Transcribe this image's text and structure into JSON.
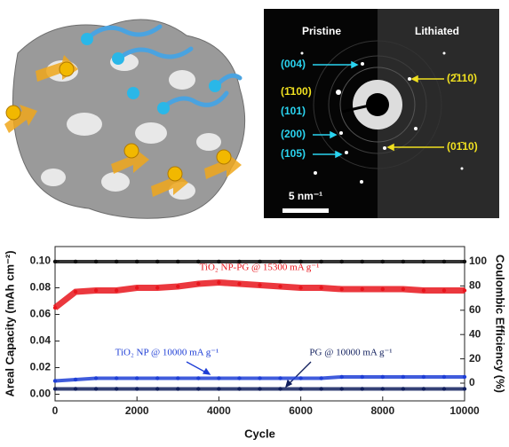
{
  "saed": {
    "pristine_label": "Pristine",
    "lithiated_label": "Lithiated",
    "left_labels": [
      "(004)",
      "(1̄100)",
      "(101)",
      "(200)",
      "(105)"
    ],
    "right_labels": [
      "(2̄110)",
      "(01̄10)"
    ],
    "scale_bar": "5 nm⁻¹"
  },
  "chart_data": {
    "type": "scatter",
    "xlabel": "Cycle",
    "ylabel": "Areal Capacity (mAh cm⁻²)",
    "y2label": "Coulombic Efficiency (%)",
    "x": [
      0,
      500,
      1000,
      1500,
      2000,
      2500,
      3000,
      3500,
      4000,
      4500,
      5000,
      5500,
      6000,
      6500,
      7000,
      7500,
      8000,
      8500,
      9000,
      9500,
      10000
    ],
    "series": [
      {
        "name": "Coulombic Efficiency",
        "color": "#111111",
        "axis": "y2",
        "values": [
          100,
          100,
          100,
          100,
          100,
          100,
          100,
          100,
          100,
          100,
          100,
          100,
          100,
          100,
          100,
          100,
          100,
          100,
          100,
          100,
          100
        ]
      },
      {
        "name": "TiO₂ NP-PG",
        "color": "#e8151c",
        "values": [
          0.065,
          0.077,
          0.078,
          0.078,
          0.08,
          0.08,
          0.081,
          0.083,
          0.084,
          0.083,
          0.082,
          0.081,
          0.08,
          0.08,
          0.079,
          0.079,
          0.079,
          0.079,
          0.078,
          0.078,
          0.078
        ]
      },
      {
        "name": "TiO₂ NP",
        "color": "#1f3fd6",
        "values": [
          0.01,
          0.011,
          0.012,
          0.012,
          0.012,
          0.012,
          0.012,
          0.012,
          0.012,
          0.012,
          0.012,
          0.012,
          0.012,
          0.012,
          0.013,
          0.013,
          0.013,
          0.013,
          0.013,
          0.013,
          0.013
        ]
      },
      {
        "name": "PG",
        "color": "#12205e",
        "values": [
          0.004,
          0.004,
          0.004,
          0.004,
          0.004,
          0.004,
          0.004,
          0.004,
          0.004,
          0.004,
          0.004,
          0.004,
          0.004,
          0.004,
          0.004,
          0.004,
          0.004,
          0.004,
          0.004,
          0.004,
          0.004
        ]
      }
    ],
    "annotations": [
      {
        "text": "TiO₂ NP-PG @ 15300 mA g⁻¹",
        "color": "#e8151c"
      },
      {
        "text": "TiO₂ NP @ 10000 mA g⁻¹",
        "color": "#1f3fd6"
      },
      {
        "text": "PG @ 10000 mA g⁻¹",
        "color": "#12205e"
      }
    ],
    "xlim": [
      0,
      10000
    ],
    "xticks": [
      0,
      2000,
      4000,
      6000,
      8000,
      10000
    ],
    "ylim": [
      -0.005,
      0.111
    ],
    "yticks": [
      {
        "value": 0,
        "label": "0.00"
      },
      {
        "value": 0.02,
        "label": "0.02"
      },
      {
        "value": 0.04,
        "label": "0.04"
      },
      {
        "value": 0.06,
        "label": "0.06"
      },
      {
        "value": 0.08,
        "label": "0.08"
      },
      {
        "value": 0.1,
        "label": "0.10"
      }
    ],
    "y2lim": [
      -14.6,
      112.4
    ],
    "y2ticks": [
      0,
      20,
      40,
      60,
      80,
      100
    ]
  }
}
